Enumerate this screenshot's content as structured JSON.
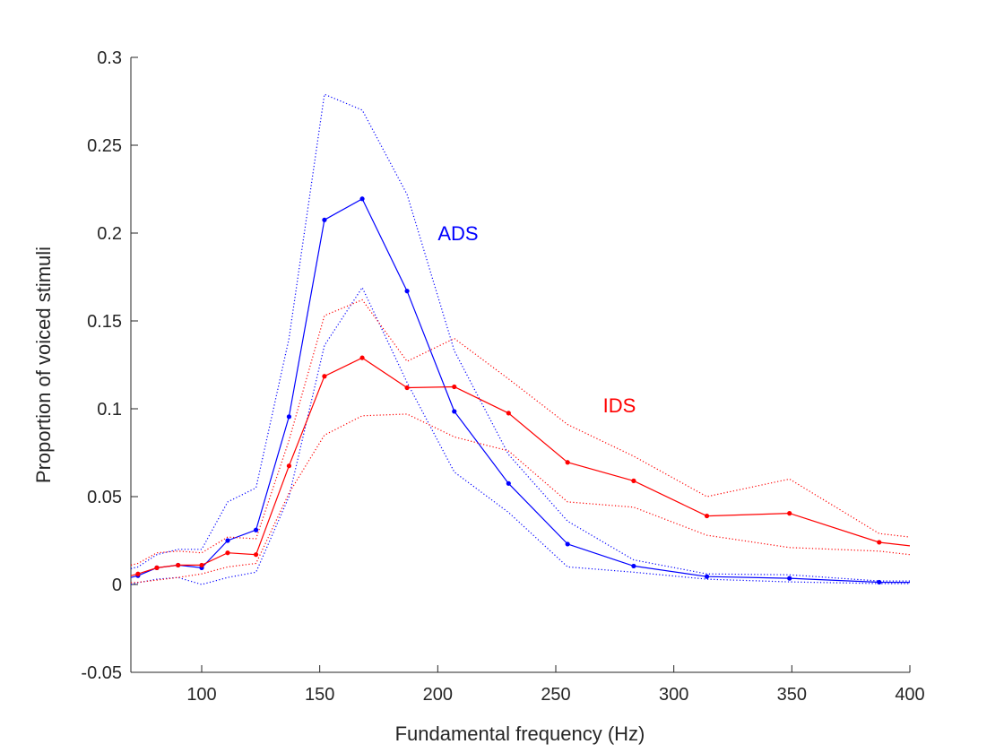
{
  "chart_data": {
    "type": "line",
    "title": "",
    "xlabel": "Fundamental frequency (Hz)",
    "ylabel": "Proportion of voiced stimuli",
    "xlim": [
      70,
      400
    ],
    "ylim": [
      -0.05,
      0.3
    ],
    "xticks": [
      100,
      150,
      200,
      250,
      300,
      350,
      400
    ],
    "xtick_labels": [
      "100",
      "150",
      "200",
      "250",
      "300",
      "350",
      "400"
    ],
    "yticks": [
      -0.05,
      0,
      0.05,
      0.1,
      0.15,
      0.2,
      0.25,
      0.3
    ],
    "ytick_labels": [
      "-0.05",
      "0",
      "0.05",
      "0.1",
      "0.15",
      "0.2",
      "0.25",
      "0.3"
    ],
    "grid": false,
    "legend": "none",
    "series": [
      {
        "name": "ADS",
        "color": "#0000ff",
        "style": "solid-markers",
        "x": [
          70,
          73,
          81,
          90,
          100,
          111,
          123,
          137,
          152,
          168,
          187,
          207,
          230,
          255,
          283,
          314,
          349,
          387,
          400
        ],
        "values": [
          0.004,
          0.005,
          0.0095,
          0.011,
          0.0095,
          0.025,
          0.031,
          0.0955,
          0.2075,
          0.2195,
          0.167,
          0.0985,
          0.0575,
          0.023,
          0.0105,
          0.0045,
          0.0035,
          0.0013,
          0.0012
        ]
      },
      {
        "name": "ADS upper",
        "color": "#0000ff",
        "style": "dotted",
        "x": [
          70,
          73,
          81,
          90,
          100,
          111,
          123,
          137,
          152,
          168,
          187,
          207,
          230,
          255,
          283,
          314,
          349,
          387,
          400
        ],
        "values": [
          0.009,
          0.01,
          0.017,
          0.02,
          0.02,
          0.047,
          0.055,
          0.14,
          0.279,
          0.27,
          0.222,
          0.133,
          0.074,
          0.036,
          0.014,
          0.006,
          0.0055,
          0.002,
          0.002
        ]
      },
      {
        "name": "ADS lower",
        "color": "#0000ff",
        "style": "dotted",
        "x": [
          70,
          73,
          81,
          90,
          100,
          111,
          123,
          137,
          152,
          168,
          187,
          207,
          230,
          255,
          283,
          314,
          349,
          387,
          400
        ],
        "values": [
          0.0,
          0.001,
          0.003,
          0.004,
          0.0,
          0.004,
          0.007,
          0.05,
          0.136,
          0.169,
          0.115,
          0.064,
          0.041,
          0.01,
          0.007,
          0.003,
          0.0015,
          0.0005,
          0.0005
        ]
      },
      {
        "name": "IDS",
        "color": "#ff0000",
        "style": "solid-markers",
        "x": [
          70,
          73,
          81,
          90,
          100,
          111,
          123,
          137,
          152,
          168,
          187,
          207,
          230,
          255,
          283,
          314,
          349,
          387,
          400
        ],
        "values": [
          0.005,
          0.006,
          0.0095,
          0.011,
          0.011,
          0.018,
          0.017,
          0.0675,
          0.1185,
          0.129,
          0.112,
          0.1125,
          0.0975,
          0.0695,
          0.059,
          0.039,
          0.0405,
          0.024,
          0.022
        ]
      },
      {
        "name": "IDS upper",
        "color": "#ff0000",
        "style": "dotted",
        "x": [
          70,
          73,
          81,
          90,
          100,
          111,
          123,
          137,
          152,
          168,
          187,
          207,
          230,
          255,
          283,
          314,
          349,
          387,
          400
        ],
        "values": [
          0.011,
          0.012,
          0.018,
          0.019,
          0.018,
          0.027,
          0.026,
          0.082,
          0.153,
          0.162,
          0.127,
          0.14,
          0.117,
          0.091,
          0.073,
          0.05,
          0.06,
          0.029,
          0.027
        ]
      },
      {
        "name": "IDS lower",
        "color": "#ff0000",
        "style": "dotted",
        "x": [
          70,
          73,
          81,
          90,
          100,
          111,
          123,
          137,
          152,
          168,
          187,
          207,
          230,
          255,
          283,
          314,
          349,
          387,
          400
        ],
        "values": [
          0.001,
          0.0012,
          0.0025,
          0.004,
          0.006,
          0.01,
          0.012,
          0.052,
          0.085,
          0.096,
          0.097,
          0.084,
          0.076,
          0.047,
          0.044,
          0.028,
          0.021,
          0.019,
          0.017
        ]
      }
    ],
    "annotations": [
      {
        "text": "ADS",
        "x": 200,
        "y": 0.196,
        "color": "#0000ff"
      },
      {
        "text": "IDS",
        "x": 270,
        "y": 0.098,
        "color": "#ff0000"
      }
    ]
  }
}
